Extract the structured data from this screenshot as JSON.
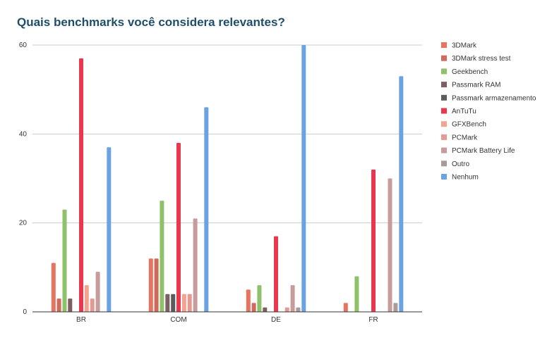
{
  "chart_data": {
    "type": "bar",
    "title": "Quais benchmarks você considera relevantes?",
    "xlabel": "",
    "ylabel": "",
    "ylim": [
      0,
      60
    ],
    "yticks": [
      0,
      20,
      40,
      60
    ],
    "grid": true,
    "legend_position": "right",
    "categories": [
      "BR",
      "COM",
      "DE",
      "FR"
    ],
    "series": [
      {
        "name": "3DMark",
        "color": "#e8735f",
        "values": [
          11,
          12,
          5,
          2
        ]
      },
      {
        "name": "3DMark stress test",
        "color": "#cf6a5d",
        "values": [
          3,
          12,
          2,
          0
        ]
      },
      {
        "name": "Geekbench",
        "color": "#8fc16b",
        "values": [
          23,
          25,
          6,
          8
        ]
      },
      {
        "name": "Passmark RAM",
        "color": "#7d5f62",
        "values": [
          3,
          4,
          1,
          0
        ]
      },
      {
        "name": "Passmark armazenamento",
        "color": "#5b5b5b",
        "values": [
          0,
          4,
          0,
          0
        ]
      },
      {
        "name": "AnTuTu",
        "color": "#e8374f",
        "values": [
          57,
          38,
          17,
          32
        ]
      },
      {
        "name": "GFXBench",
        "color": "#f2a48f",
        "values": [
          6,
          4,
          0,
          0
        ]
      },
      {
        "name": "PCMark",
        "color": "#e39a94",
        "values": [
          3,
          4,
          1,
          0
        ]
      },
      {
        "name": "PCMark Battery Life",
        "color": "#c79c9a",
        "values": [
          9,
          21,
          6,
          30
        ]
      },
      {
        "name": "Outro",
        "color": "#aa9a9a",
        "values": [
          0,
          0,
          1,
          2
        ]
      },
      {
        "name": "Nenhum",
        "color": "#6aa2e6",
        "values": [
          37,
          46,
          60,
          53
        ]
      }
    ]
  }
}
